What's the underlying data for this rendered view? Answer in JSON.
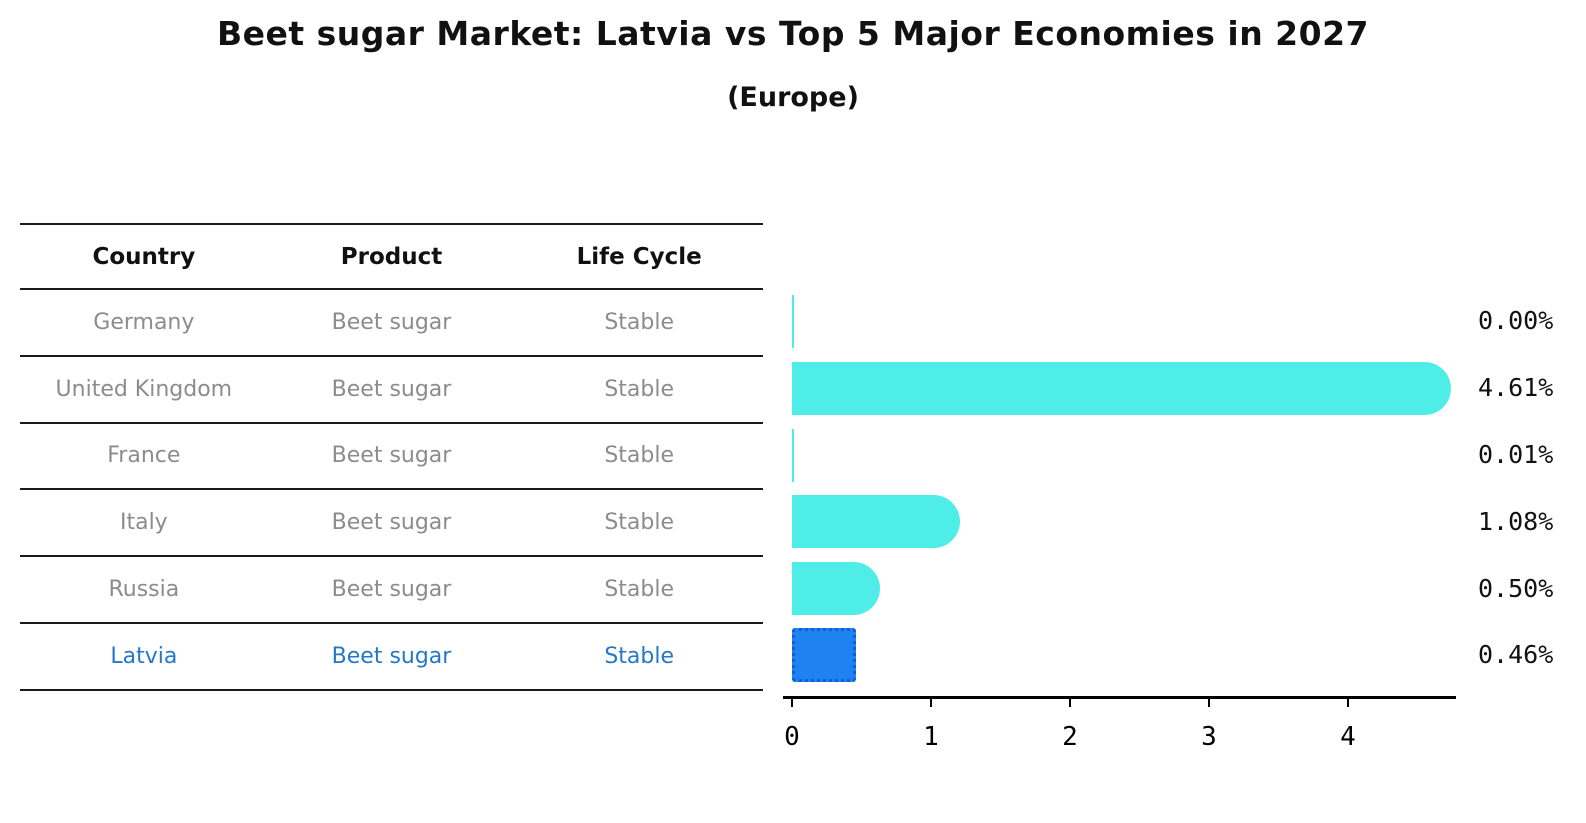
{
  "title": "Beet sugar Market: Latvia vs Top 5 Major Economies in 2027",
  "subtitle": "(Europe)",
  "table": {
    "headers": [
      "Country",
      "Product",
      "Life Cycle"
    ],
    "rows": [
      {
        "country": "Germany",
        "product": "Beet sugar",
        "life_cycle": "Stable",
        "highlighted": false
      },
      {
        "country": "United Kingdom",
        "product": "Beet sugar",
        "life_cycle": "Stable",
        "highlighted": false
      },
      {
        "country": "France",
        "product": "Beet sugar",
        "life_cycle": "Stable",
        "highlighted": false
      },
      {
        "country": "Italy",
        "product": "Beet sugar",
        "life_cycle": "Stable",
        "highlighted": false
      },
      {
        "country": "Russia",
        "product": "Beet sugar",
        "life_cycle": "Stable",
        "highlighted": false
      },
      {
        "country": "Latvia",
        "product": "Beet sugar",
        "life_cycle": "Stable",
        "highlighted": true
      }
    ]
  },
  "chart_data": {
    "type": "bar",
    "orientation": "horizontal",
    "title": "Beet sugar Market: Latvia vs Top 5 Major Economies in 2027",
    "subtitle": "(Europe)",
    "categories": [
      "Germany",
      "United Kingdom",
      "France",
      "Italy",
      "Russia",
      "Latvia"
    ],
    "values": [
      0.0,
      4.61,
      0.01,
      1.08,
      0.5,
      0.46
    ],
    "value_labels": [
      "0.00%",
      "4.61%",
      "0.01%",
      "1.08%",
      "0.50%",
      "0.46%"
    ],
    "xlabel": "",
    "ylabel": "",
    "xlim": [
      0,
      4.8
    ],
    "xticks": [
      "0",
      "1",
      "2",
      "3",
      "4"
    ],
    "grid": false,
    "legend": false,
    "highlight_index": 5
  },
  "colors": {
    "bar": "#4FEDE8",
    "highlight_bar": "#1E82F0",
    "highlight_border": "#0E5FD8",
    "highlight_text": "#2478C8",
    "muted_text": "#8C8C8C",
    "heading_text": "#111111",
    "axis": "#000000"
  }
}
